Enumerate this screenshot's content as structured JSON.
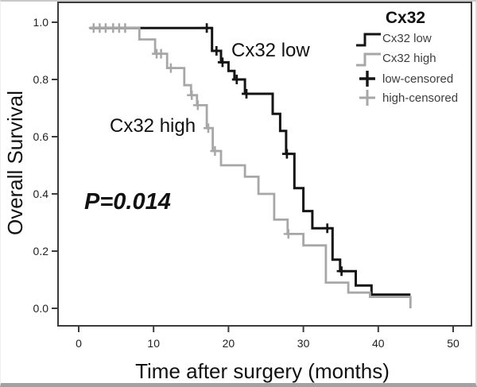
{
  "chart_data": {
    "type": "line",
    "subtype": "kaplan-meier-step",
    "title": "",
    "xlabel": "Time after surgery (months)",
    "ylabel": "Overall Survival",
    "xlim": [
      0,
      50
    ],
    "ylim": [
      0.0,
      1.0
    ],
    "grid": false,
    "x_ticks": [
      "0",
      "10",
      "20",
      "30",
      "40",
      "50"
    ],
    "x_tick_values": [
      0,
      10,
      20,
      30,
      40,
      50
    ],
    "y_ticks": [
      "0.0",
      "0.2",
      "0.4",
      "0.6",
      "0.8",
      "1.0"
    ],
    "y_tick_values": [
      0.0,
      0.2,
      0.4,
      0.6,
      0.8,
      1.0
    ],
    "p_value": "P=0.014",
    "curve_labels": {
      "low": "Cx32 low",
      "high": "Cx32 high"
    },
    "colors": {
      "low": "#141414",
      "high": "#a7a7a7",
      "axis": "#3c3c3c"
    },
    "legend": {
      "position": "top-right",
      "title": "Cx32",
      "entries": [
        {
          "label": "Cx32 low",
          "symbol": "step-line",
          "color": "#141414"
        },
        {
          "label": "Cx32 high",
          "symbol": "step-line",
          "color": "#a7a7a7"
        },
        {
          "label": "low-censored",
          "symbol": "plus",
          "color": "#141414"
        },
        {
          "label": "high-censored",
          "symbol": "plus",
          "color": "#a7a7a7"
        }
      ]
    },
    "series": [
      {
        "name": "Cx32 low",
        "color": "#141414",
        "stroke_width": 3,
        "t_end": 44.3,
        "steps": [
          [
            1.5,
            0.98
          ],
          [
            17.8,
            0.9
          ],
          [
            19.0,
            0.86
          ],
          [
            20.0,
            0.83
          ],
          [
            20.8,
            0.8
          ],
          [
            22.2,
            0.75
          ],
          [
            25.9,
            0.68
          ],
          [
            26.9,
            0.62
          ],
          [
            27.7,
            0.54
          ],
          [
            28.8,
            0.42
          ],
          [
            30.0,
            0.34
          ],
          [
            31.2,
            0.28
          ],
          [
            33.9,
            0.17
          ],
          [
            34.9,
            0.13
          ],
          [
            37.0,
            0.08
          ],
          [
            39.1,
            0.048
          ]
        ],
        "censored": [
          [
            17.1,
            0.98
          ],
          [
            18.4,
            0.9
          ],
          [
            19.2,
            0.86
          ],
          [
            21.1,
            0.8
          ],
          [
            22.4,
            0.75
          ],
          [
            27.8,
            0.54
          ],
          [
            33.2,
            0.28
          ],
          [
            35.1,
            0.13
          ]
        ]
      },
      {
        "name": "Cx32 high",
        "color": "#a7a7a7",
        "stroke_width": 2.8,
        "t_end": 44.3,
        "steps": [
          [
            1.5,
            0.98
          ],
          [
            8.1,
            0.94
          ],
          [
            10.2,
            0.89
          ],
          [
            11.8,
            0.84
          ],
          [
            14.1,
            0.78
          ],
          [
            15.0,
            0.745
          ],
          [
            15.8,
            0.71
          ],
          [
            17.1,
            0.63
          ],
          [
            17.9,
            0.55
          ],
          [
            19.0,
            0.5
          ],
          [
            22.2,
            0.46
          ],
          [
            24.0,
            0.4
          ],
          [
            26.1,
            0.31
          ],
          [
            27.9,
            0.26
          ],
          [
            30.0,
            0.22
          ],
          [
            33.0,
            0.09
          ],
          [
            36.0,
            0.055
          ],
          [
            38.9,
            0.04
          ],
          [
            44.3,
            0.0
          ]
        ],
        "censored": [
          [
            2.0,
            0.98
          ],
          [
            2.8,
            0.98
          ],
          [
            3.6,
            0.98
          ],
          [
            4.6,
            0.98
          ],
          [
            5.4,
            0.98
          ],
          [
            6.2,
            0.98
          ],
          [
            10.4,
            0.89
          ],
          [
            11.0,
            0.89
          ],
          [
            12.3,
            0.84
          ],
          [
            15.1,
            0.745
          ],
          [
            15.9,
            0.71
          ],
          [
            17.3,
            0.63
          ],
          [
            18.2,
            0.55
          ],
          [
            28.0,
            0.26
          ]
        ]
      }
    ]
  }
}
